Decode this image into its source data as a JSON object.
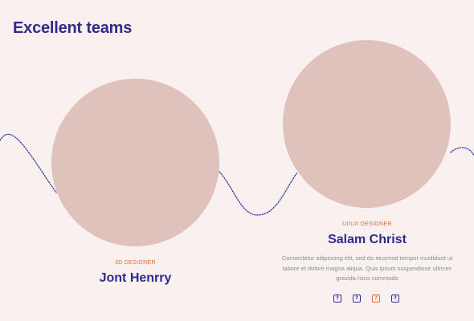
{
  "section": {
    "title": "Excellent teams"
  },
  "team": [
    {
      "role": "3D DESIGNER",
      "name": "Jont Henrry"
    },
    {
      "role": "UI/UX DESIGNER",
      "name": "Salam Christ",
      "bio": "Consectetur adipiscing elit, sed do eiusmod tempor incididunt ut labore et dolore magna aliqua. Quis ipsum suspendisse ultrices gravida risus commodo"
    }
  ],
  "socials": [
    {
      "glyph": "?",
      "icon": "social-icon-1"
    },
    {
      "glyph": "?",
      "icon": "social-icon-2"
    },
    {
      "glyph": "?",
      "icon": "social-icon-3"
    },
    {
      "glyph": "?",
      "icon": "social-icon-4"
    }
  ],
  "colors": {
    "background": "#f9f1ef",
    "heading": "#2f2b8a",
    "accent": "#e06c2b",
    "photo_placeholder": "#dfc2bb",
    "body_text": "#8c8a93"
  }
}
